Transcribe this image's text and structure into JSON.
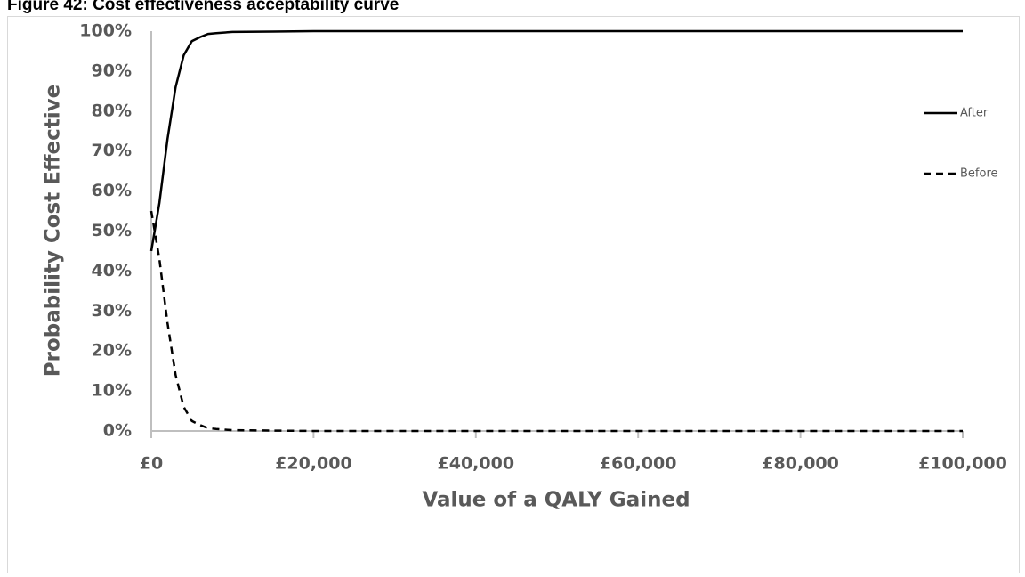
{
  "chart_data": {
    "type": "line",
    "title": "Figure 42: Cost effectiveness acceptability curve",
    "x_label": "Value of a QALY Gained",
    "y_label": "Probability Cost Effective",
    "x": [
      0,
      1000,
      2000,
      3000,
      4000,
      5000,
      6000,
      7000,
      8000,
      10000,
      15000,
      20000,
      100000
    ],
    "series": [
      {
        "name": "After",
        "color": "#000000",
        "dash": false,
        "values": [
          45,
          57,
          73,
          86,
          94,
          97.5,
          98.5,
          99.3,
          99.5,
          99.8,
          99.9,
          100,
          100
        ]
      },
      {
        "name": "Before",
        "color": "#000000",
        "dash": true,
        "values": [
          55,
          43,
          27,
          14,
          6,
          2.5,
          1.5,
          0.7,
          0.5,
          0.2,
          0.1,
          0,
          0
        ]
      }
    ],
    "xlim": [
      0,
      100000
    ],
    "xticks": [
      {
        "value": 0,
        "label": "£0"
      },
      {
        "value": 20000,
        "label": "£20,000"
      },
      {
        "value": 40000,
        "label": "£40,000"
      },
      {
        "value": 60000,
        "label": "£60,000"
      },
      {
        "value": 80000,
        "label": "£80,000"
      },
      {
        "value": 100000,
        "label": "£100,000"
      }
    ],
    "ylim": [
      0,
      100
    ],
    "yticks": [
      {
        "value": 0,
        "label": "0%"
      },
      {
        "value": 10,
        "label": "10%"
      },
      {
        "value": 20,
        "label": "20%"
      },
      {
        "value": 30,
        "label": "30%"
      },
      {
        "value": 40,
        "label": "40%"
      },
      {
        "value": 50,
        "label": "50%"
      },
      {
        "value": 60,
        "label": "60%"
      },
      {
        "value": 70,
        "label": "70%"
      },
      {
        "value": 80,
        "label": "80%"
      },
      {
        "value": 90,
        "label": "90%"
      },
      {
        "value": 100,
        "label": "100%"
      }
    ],
    "grid": false,
    "legend": "right"
  }
}
